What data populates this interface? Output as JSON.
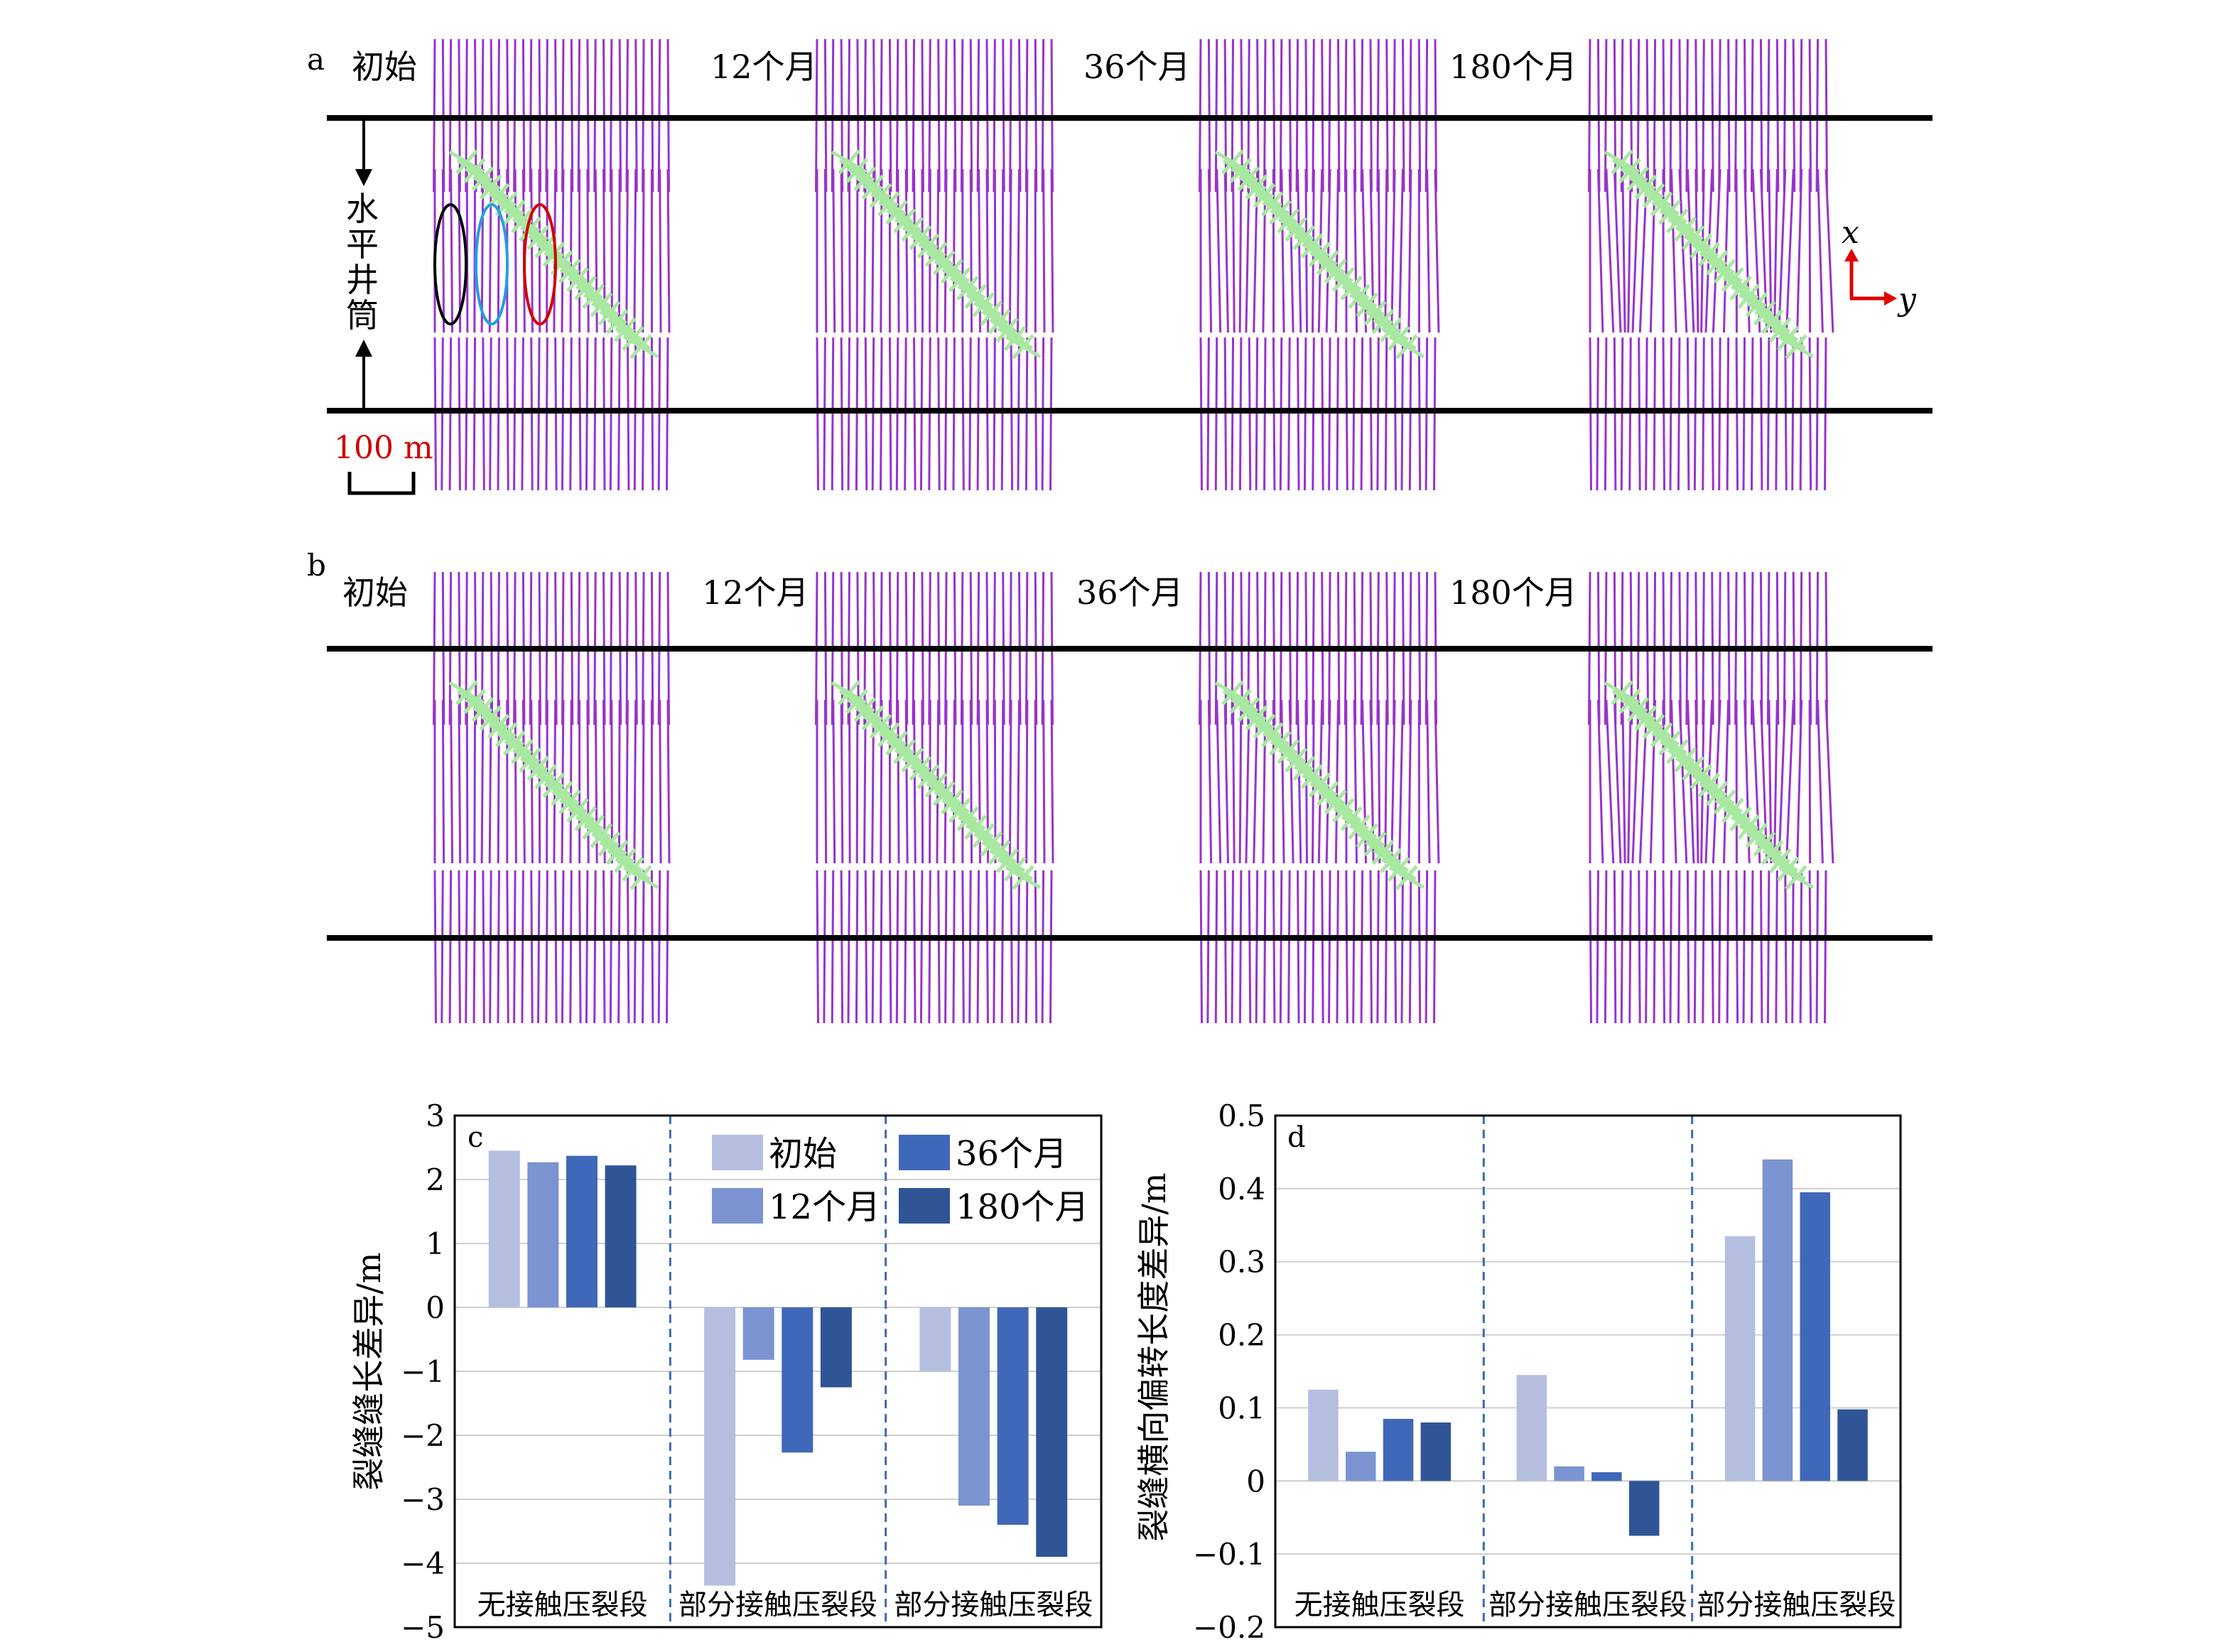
{
  "panels": {
    "a": {
      "label": "a",
      "times": [
        "初始",
        "12个月",
        "36个月",
        "180个月"
      ],
      "wellbore_label": [
        "水",
        "平",
        "井",
        "筒"
      ],
      "scale_bar": "100 m",
      "axis_x": "x",
      "axis_y": "y",
      "ellipse_colors": [
        "#000000",
        "#1fa0e0",
        "#d00000"
      ]
    },
    "b": {
      "label": "b",
      "times": [
        "初始",
        "12个月",
        "36个月",
        "180个月"
      ]
    }
  },
  "colors": {
    "fracture_purple": "#9933cc",
    "natural_fracture_green": "#a8e8a0",
    "wellbore": "#000000",
    "series": [
      "#b4bfe0",
      "#7b93d0",
      "#4068b8",
      "#2f5597"
    ],
    "divider": "#3c6bb0"
  },
  "chart_data": [
    {
      "panel": "c",
      "type": "bar",
      "ylabel": "裂缝缝长差异/m",
      "ylim": [
        -5,
        3
      ],
      "yticks": [
        "3",
        "2",
        "1",
        "0",
        "−1",
        "−2",
        "−3",
        "−4",
        "−5"
      ],
      "categories": [
        "无接触压裂段",
        "部分接触压裂段",
        "部分接触压裂段"
      ],
      "series": [
        {
          "name": "初始",
          "values": [
            2.45,
            -4.35,
            -1.0
          ]
        },
        {
          "name": "12个月",
          "values": [
            2.27,
            -0.82,
            -3.1
          ]
        },
        {
          "name": "36个月",
          "values": [
            2.37,
            -2.27,
            -3.4
          ]
        },
        {
          "name": "180个月",
          "values": [
            2.22,
            -1.25,
            -3.9
          ]
        }
      ],
      "legend": "top-right",
      "grid": true
    },
    {
      "panel": "d",
      "type": "bar",
      "ylabel": "裂缝横向偏转长度差异/m",
      "ylim": [
        -0.2,
        0.5
      ],
      "yticks": [
        "0.5",
        "0.4",
        "0.3",
        "0.2",
        "0.1",
        "0",
        "−0.1",
        "−0.2"
      ],
      "categories": [
        "无接触压裂段",
        "部分接触压裂段",
        "部分接触压裂段"
      ],
      "series": [
        {
          "name": "初始",
          "values": [
            0.125,
            0.145,
            0.335
          ]
        },
        {
          "name": "12个月",
          "values": [
            0.04,
            0.02,
            0.44
          ]
        },
        {
          "name": "36个月",
          "values": [
            0.085,
            0.012,
            0.395
          ]
        },
        {
          "name": "180个月",
          "values": [
            0.08,
            -0.075,
            0.098
          ]
        }
      ],
      "grid": true
    }
  ]
}
